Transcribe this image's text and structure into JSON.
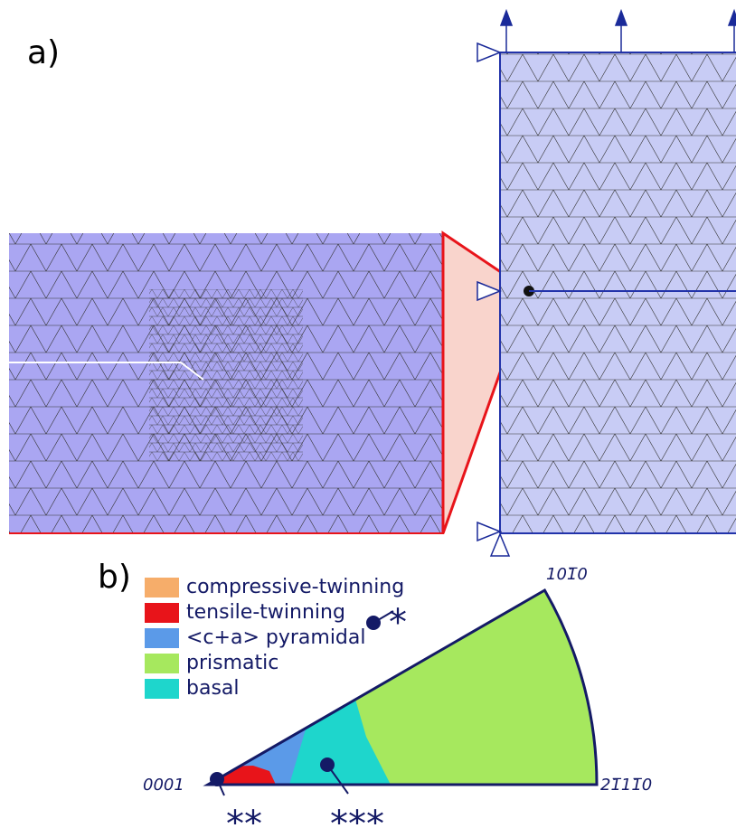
{
  "panel_a": {
    "label": "a)"
  },
  "panel_b": {
    "label": "b)",
    "legend": [
      {
        "name": "compressive-twinning",
        "color": "#f6ad6a"
      },
      {
        "name": "tensile-twinning",
        "color": "#e8141a"
      },
      {
        "name": "<c+a> pyramidal",
        "color": "#5b9ae8"
      },
      {
        "name": "prismatic",
        "color": "#a6e85e"
      },
      {
        "name": "basal",
        "color": "#1ed6cc"
      }
    ],
    "corners": {
      "origin": "0001",
      "top": "101̅0",
      "right": "21̅11̅0"
    },
    "markers": [
      "*",
      "**",
      "***"
    ]
  }
}
